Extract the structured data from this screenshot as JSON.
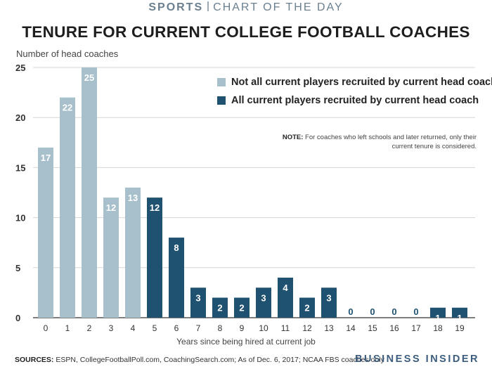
{
  "header": {
    "kicker_strong": "SPORTS",
    "kicker_light": "CHART OF THE DAY",
    "title": "TENURE FOR CURRENT COLLEGE FOOTBALL COACHES"
  },
  "note": {
    "label": "NOTE:",
    "text": "For coaches who left schools and later returned, only their current tenure is considered."
  },
  "footer": {
    "sources_label": "SOURCES:",
    "sources_text": "ESPN, CollegeFootballPoll.com, CoachingSearch.com; As of Dec. 6, 2017; NCAA FBS coaches only",
    "brand": "BUSINESS INSIDER"
  },
  "chart_data": {
    "type": "bar",
    "categories": [
      "0",
      "1",
      "2",
      "3",
      "4",
      "5",
      "6",
      "7",
      "8",
      "9",
      "10",
      "11",
      "12",
      "13",
      "14",
      "15",
      "16",
      "17",
      "18",
      "19"
    ],
    "values": [
      17,
      22,
      25,
      12,
      13,
      12,
      8,
      3,
      2,
      2,
      3,
      4,
      2,
      3,
      0,
      0,
      0,
      0,
      1,
      1
    ],
    "data_labels": [
      "17",
      "22",
      "25",
      "12",
      "13",
      "12",
      "8",
      "3",
      "2",
      "2",
      "3",
      "4",
      "2",
      "3",
      "0",
      "0",
      "0",
      "0",
      "1",
      "1"
    ],
    "series_group": [
      "light",
      "light",
      "light",
      "light",
      "light",
      "dark",
      "dark",
      "dark",
      "dark",
      "dark",
      "dark",
      "dark",
      "dark",
      "dark",
      "dark",
      "dark",
      "dark",
      "dark",
      "dark",
      "dark"
    ],
    "series": [
      {
        "key": "light",
        "name": "Not all current players recruited by current head coach",
        "color": "#a8bfcc"
      },
      {
        "key": "dark",
        "name": "All current players recruited by current head coach",
        "color": "#1f5170"
      }
    ],
    "xlabel": "Years since being hired at current job",
    "ylabel": "Number of head coaches",
    "ylim": [
      0,
      25
    ],
    "yticks": [
      0,
      5,
      10,
      15,
      20,
      25
    ],
    "grid": true,
    "legend_position": "top-right"
  }
}
